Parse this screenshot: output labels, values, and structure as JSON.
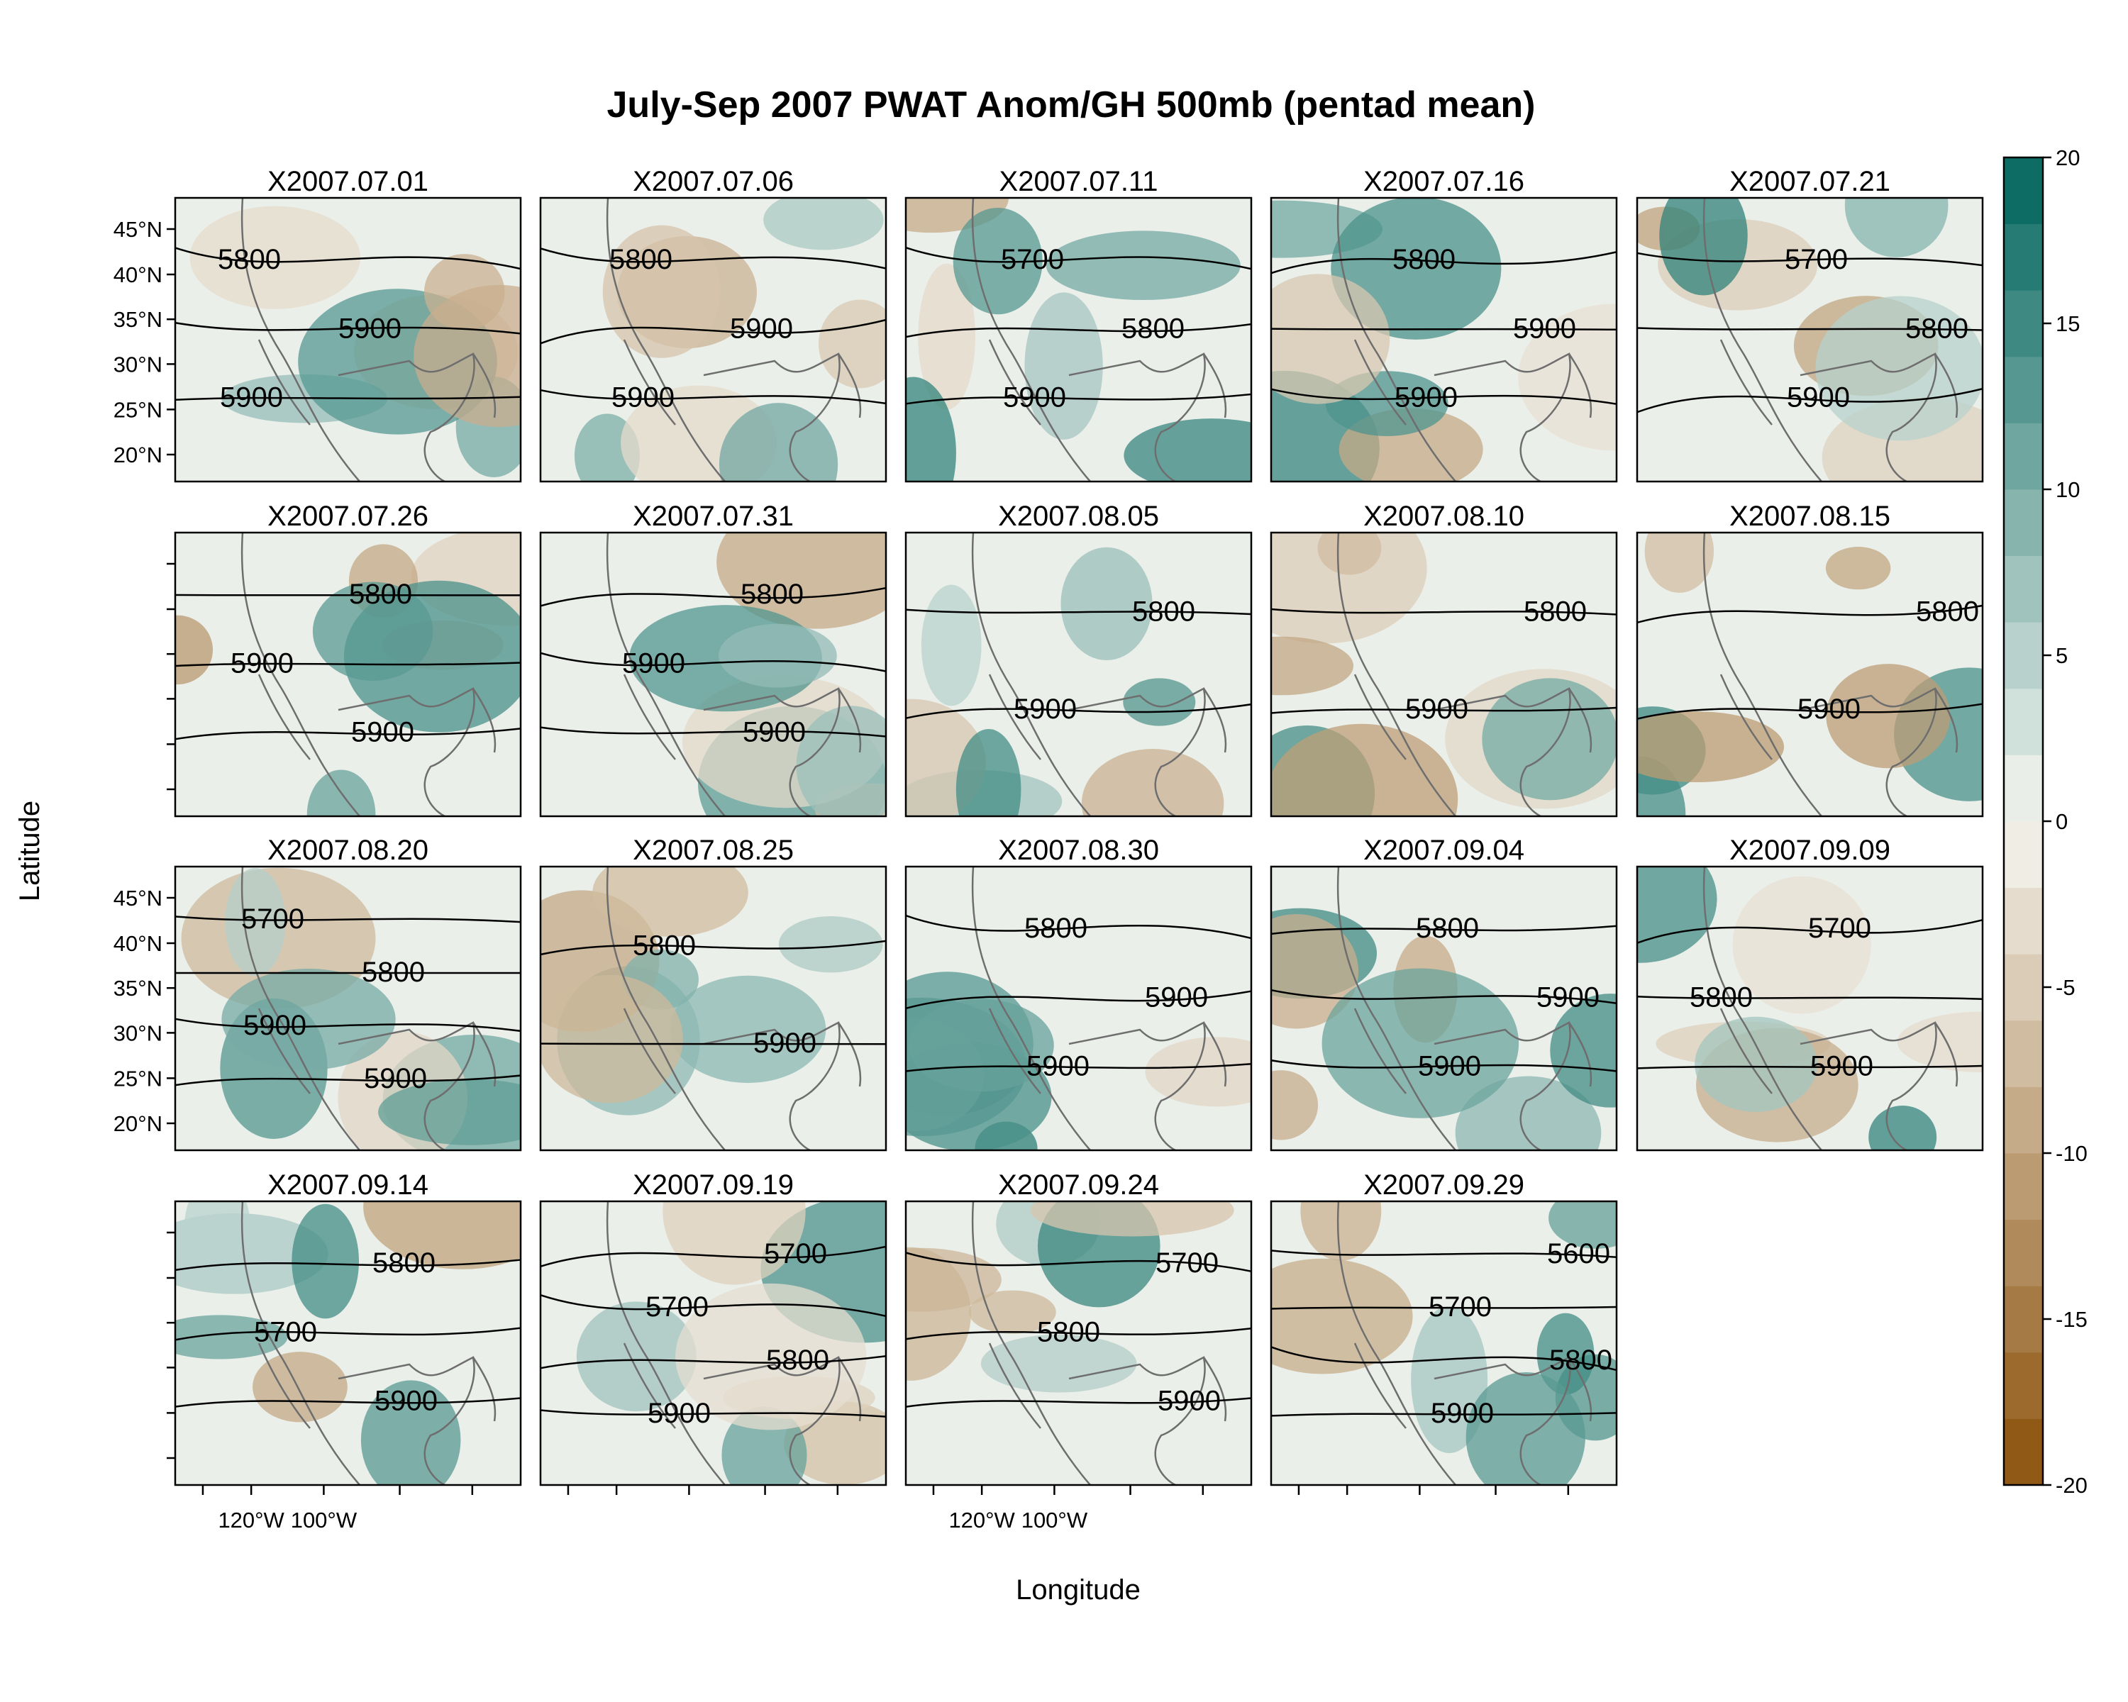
{
  "chart_data": {
    "type": "heatmap",
    "title": "July-Sep 2007 PWAT Anom/GH 500mb (pentad mean)",
    "xlabel": "Longitude",
    "ylabel": "Latitude",
    "x_ticks": [
      "120°W",
      "100°W"
    ],
    "y_ticks": [
      "20°N",
      "25°N",
      "30°N",
      "35°N",
      "40°N",
      "45°N"
    ],
    "colorbar": {
      "range": [
        -20,
        20
      ],
      "ticks": [
        "-20",
        "-15",
        "-10",
        "-5",
        "0",
        "5",
        "10",
        "15",
        "20"
      ],
      "levels": 20,
      "low_color": "#8c510a",
      "mid_color": "#f5f5f0",
      "high_color": "#01665e"
    },
    "panels": [
      {
        "label": "X2007.07.01",
        "contours": [
          "5800",
          "5900",
          "5900"
        ]
      },
      {
        "label": "X2007.07.06",
        "contours": [
          "5800",
          "5900",
          "5900"
        ]
      },
      {
        "label": "X2007.07.11",
        "contours": [
          "5700",
          "5800",
          "5900"
        ]
      },
      {
        "label": "X2007.07.16",
        "contours": [
          "5800",
          "5900",
          "5900"
        ]
      },
      {
        "label": "X2007.07.21",
        "contours": [
          "5700",
          "5800",
          "5900"
        ]
      },
      {
        "label": "X2007.07.26",
        "contours": [
          "5800",
          "5900",
          "5900"
        ]
      },
      {
        "label": "X2007.07.31",
        "contours": [
          "5800",
          "5900",
          "5900"
        ]
      },
      {
        "label": "X2007.08.05",
        "contours": [
          "5800",
          "5900"
        ]
      },
      {
        "label": "X2007.08.10",
        "contours": [
          "5800",
          "5900"
        ]
      },
      {
        "label": "X2007.08.15",
        "contours": [
          "5800",
          "5900"
        ]
      },
      {
        "label": "X2007.08.20",
        "contours": [
          "5700",
          "5800",
          "5900",
          "5900"
        ]
      },
      {
        "label": "X2007.08.25",
        "contours": [
          "5800",
          "5900"
        ]
      },
      {
        "label": "X2007.08.30",
        "contours": [
          "5800",
          "5900",
          "5900"
        ]
      },
      {
        "label": "X2007.09.04",
        "contours": [
          "5800",
          "5900",
          "5900"
        ]
      },
      {
        "label": "X2007.09.09",
        "contours": [
          "5700",
          "5800",
          "5900"
        ]
      },
      {
        "label": "X2007.09.14",
        "contours": [
          "5800",
          "5700",
          "5900"
        ]
      },
      {
        "label": "X2007.09.19",
        "contours": [
          "5700",
          "5700",
          "5800",
          "5900"
        ]
      },
      {
        "label": "X2007.09.24",
        "contours": [
          "5700",
          "5800",
          "5900"
        ]
      },
      {
        "label": "X2007.09.29",
        "contours": [
          "5600",
          "5700",
          "5800",
          "5900"
        ]
      }
    ]
  }
}
